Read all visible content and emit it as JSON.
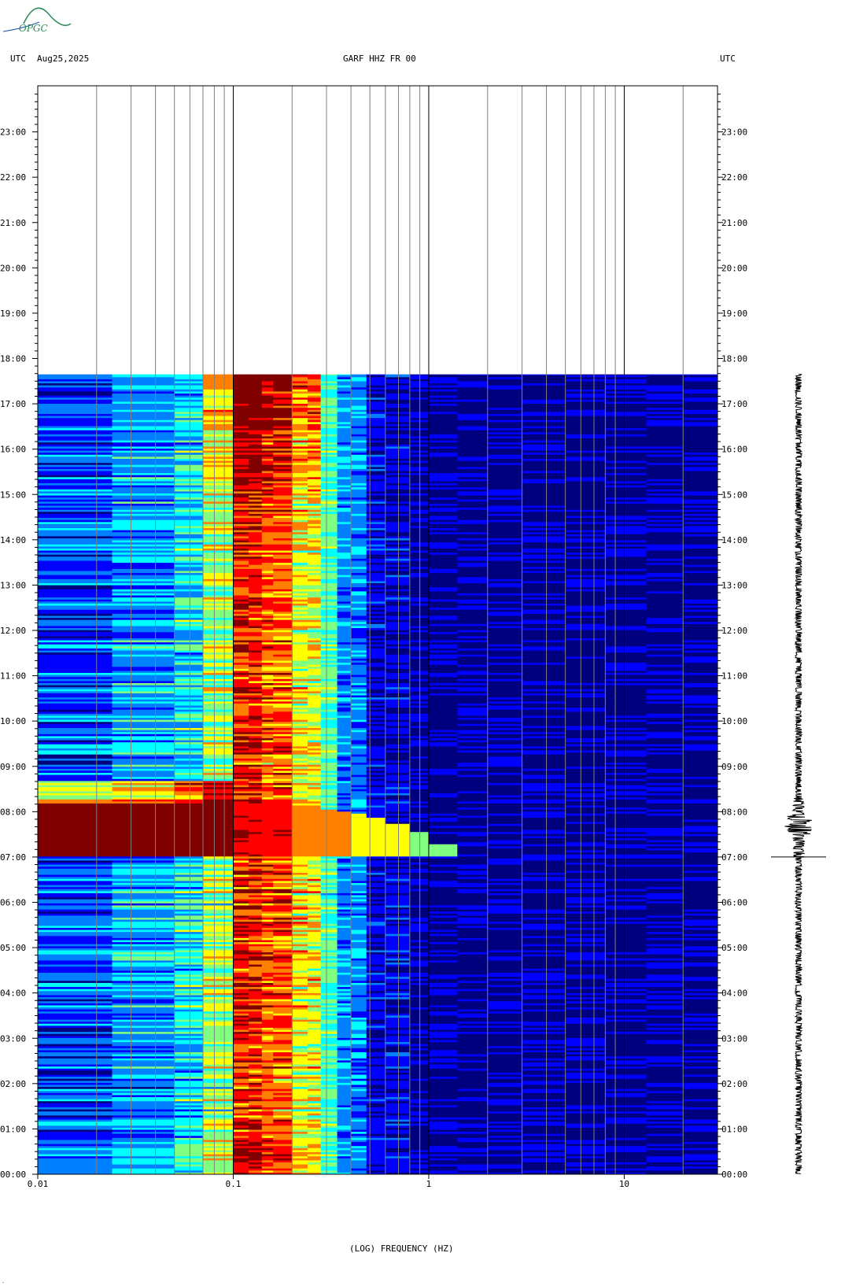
{
  "header": {
    "left_utc": "UTC",
    "date": "Aug25,2025",
    "station": "GARF HHZ FR 00",
    "right_utc": "UTC"
  },
  "logo": {
    "text": "OPGC",
    "color": "#2e8b57",
    "accent": "#1a4fb5"
  },
  "chart_data": {
    "type": "heatmap",
    "title": "GARF HHZ FR 00",
    "xlabel": "(LOG) FREQUENCY (HZ)",
    "x_scale": "log",
    "xlim": [
      0.01,
      30
    ],
    "x_tick_labels": [
      "0.01",
      "0.1",
      "1",
      "10"
    ],
    "x_tick_values": [
      0.01,
      0.1,
      1,
      10
    ],
    "y_axis": {
      "label": "UTC",
      "range_hours": [
        0,
        24
      ],
      "orientation": "hours increase upward"
    },
    "y_tick_labels": [
      "00:00",
      "01:00",
      "02:00",
      "03:00",
      "04:00",
      "05:00",
      "06:00",
      "07:00",
      "08:00",
      "09:00",
      "10:00",
      "11:00",
      "12:00",
      "13:00",
      "14:00",
      "15:00",
      "16:00",
      "17:00",
      "18:00",
      "19:00",
      "20:00",
      "21:00",
      "22:00",
      "23:00"
    ],
    "data_end_hour": 17.65,
    "event": {
      "onset_hour": 7.0,
      "duration_hours": 1.15,
      "max_frequency_hz": 1.3
    },
    "colormap": [
      "#00007f",
      "#0000ff",
      "#0080ff",
      "#00ffff",
      "#80ff80",
      "#ffff00",
      "#ff8000",
      "#ff0000",
      "#800000"
    ],
    "seismogram": {
      "color": "#000000"
    }
  }
}
